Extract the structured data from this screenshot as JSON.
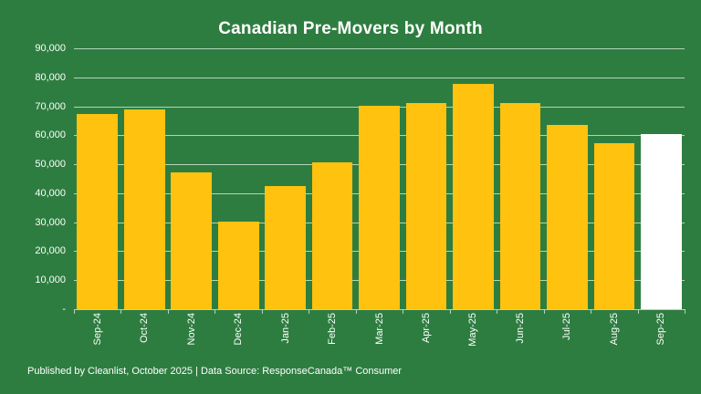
{
  "title": "Canadian Pre-Movers by Month",
  "footer": "Published by Cleanlist, October 2025 | Data Source: ResponseCanada™ Consumer",
  "colors": {
    "background": "#2E7D40",
    "bar": "#FFC20E",
    "highlight_bar": "#FFFFFF",
    "gridline": "#B6D2BC",
    "text": "#FFFFFF"
  },
  "chart_data": {
    "type": "bar",
    "title": "Canadian Pre-Movers by Month",
    "categories": [
      "Sep-24",
      "Oct-24",
      "Nov-24",
      "Dec-24",
      "Jan-25",
      "Feb-25",
      "Mar-25",
      "Apr-25",
      "May-25",
      "Jun-25",
      "Jul-25",
      "Aug-25",
      "Sep-25"
    ],
    "values": [
      67500,
      69000,
      47200,
      30300,
      42600,
      50600,
      70200,
      71000,
      77700,
      71200,
      63500,
      57400,
      60400
    ],
    "highlight_category": "Sep-25",
    "xlabel": "",
    "ylabel": "",
    "ylim": [
      0,
      90000
    ],
    "ytick_values": [
      0,
      10000,
      20000,
      30000,
      40000,
      50000,
      60000,
      70000,
      80000,
      90000
    ],
    "ytick_labels": [
      "-",
      "10,000",
      "20,000",
      "30,000",
      "40,000",
      "50,000",
      "60,000",
      "70,000",
      "80,000",
      "90,000"
    ],
    "grid": "horizontal",
    "legend": "none",
    "x_tick_marks": "between-categories"
  }
}
